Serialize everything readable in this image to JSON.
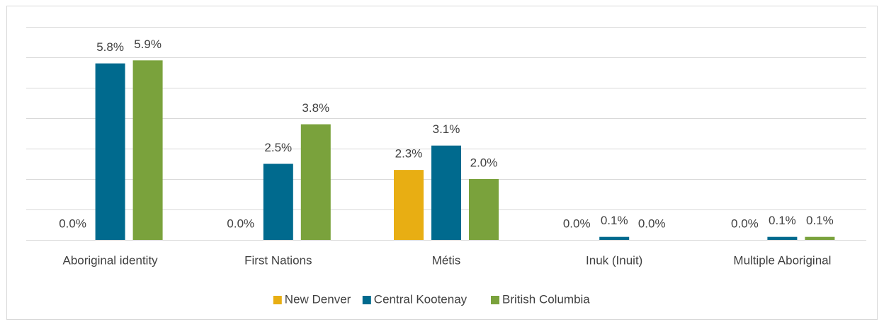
{
  "chart_data": {
    "type": "bar",
    "categories": [
      "Aboriginal identity",
      "First Nations",
      "Métis",
      "Inuk (Inuit)",
      "Multiple Aboriginal"
    ],
    "series": [
      {
        "name": "New Denver",
        "color": "#e8ae13",
        "values": [
          0.0,
          0.0,
          2.3,
          0.0,
          0.0
        ],
        "value_labels": [
          "0.0%",
          "0.0%",
          "2.3%",
          "0.0%",
          "0.0%"
        ]
      },
      {
        "name": "Central Kootenay",
        "color": "#006a8e",
        "values": [
          5.8,
          2.5,
          3.1,
          0.1,
          0.1
        ],
        "value_labels": [
          "5.8%",
          "2.5%",
          "3.1%",
          "0.1%",
          "0.1%"
        ]
      },
      {
        "name": "British Columbia",
        "color": "#7aa23c",
        "values": [
          5.9,
          3.8,
          2.0,
          0.0,
          0.1
        ],
        "value_labels": [
          "5.9%",
          "3.8%",
          "2.0%",
          "0.0%",
          "0.1%"
        ]
      }
    ],
    "ylim": [
      0,
      7
    ],
    "yticks": [
      0,
      1,
      2,
      3,
      4,
      5,
      6,
      7
    ],
    "grid": true,
    "legend": "bottom"
  }
}
